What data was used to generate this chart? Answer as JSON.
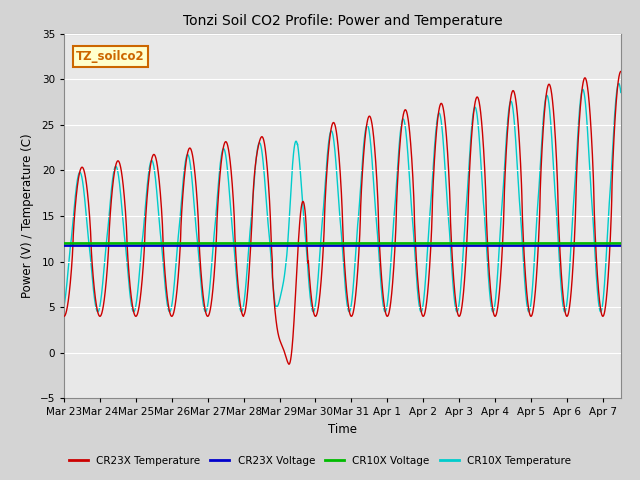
{
  "title": "Tonzi Soil CO2 Profile: Power and Temperature",
  "xlabel": "Time",
  "ylabel": "Power (V) / Temperature (C)",
  "ylim": [
    -5,
    35
  ],
  "yticks": [
    -5,
    0,
    5,
    10,
    15,
    20,
    25,
    30,
    35
  ],
  "fig_bg_color": "#d4d4d4",
  "plot_bg_color": "#e8e8e8",
  "legend_labels": [
    "CR23X Temperature",
    "CR23X Voltage",
    "CR10X Voltage",
    "CR10X Temperature"
  ],
  "cr23x_color": "#cc0000",
  "cr23x_voltage_color": "#0000cc",
  "cr10x_voltage_color": "#00bb00",
  "cr10x_color": "#00cccc",
  "cr23x_voltage_val": 11.75,
  "cr10x_voltage_val": 12.0,
  "annotation_text": "TZ_soilco2",
  "annotation_color": "#cc6600",
  "annotation_bg": "#ffffcc",
  "grid_color": "#ffffff",
  "tick_labels": [
    "Mar 23",
    "Mar 24",
    "Mar 25",
    "Mar 26",
    "Mar 27",
    "Mar 28",
    "Mar 29",
    "Mar 30",
    "Mar 31",
    "Apr 1",
    "Apr 2",
    "Apr 3",
    "Apr 4",
    "Apr 5",
    "Apr 6",
    "Apr 7"
  ]
}
